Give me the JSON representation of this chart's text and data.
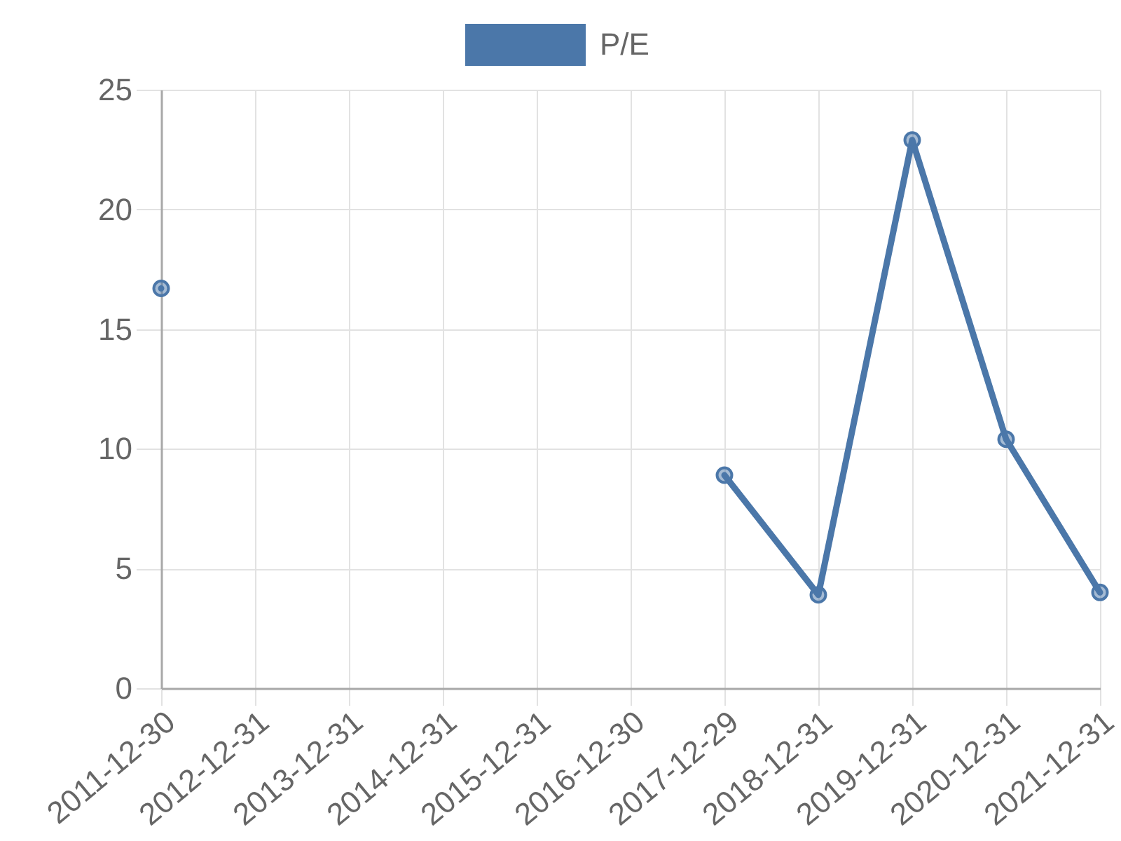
{
  "chart_data": {
    "type": "line",
    "categories": [
      "2011-12-30",
      "2012-12-31",
      "2013-12-31",
      "2014-12-31",
      "2015-12-31",
      "2016-12-30",
      "2017-12-29",
      "2018-12-31",
      "2019-12-31",
      "2020-12-31",
      "2021-12-31"
    ],
    "series": [
      {
        "name": "P/E",
        "color": "#4b77a9",
        "values": [
          16.7,
          null,
          null,
          null,
          null,
          null,
          8.9,
          3.9,
          22.9,
          10.4,
          4.0
        ]
      }
    ],
    "ylim": [
      0,
      25
    ],
    "yticks": [
      0,
      5,
      10,
      15,
      20,
      25
    ],
    "grid": true,
    "legend": "top",
    "marker": "circle",
    "line_style": "solid"
  }
}
